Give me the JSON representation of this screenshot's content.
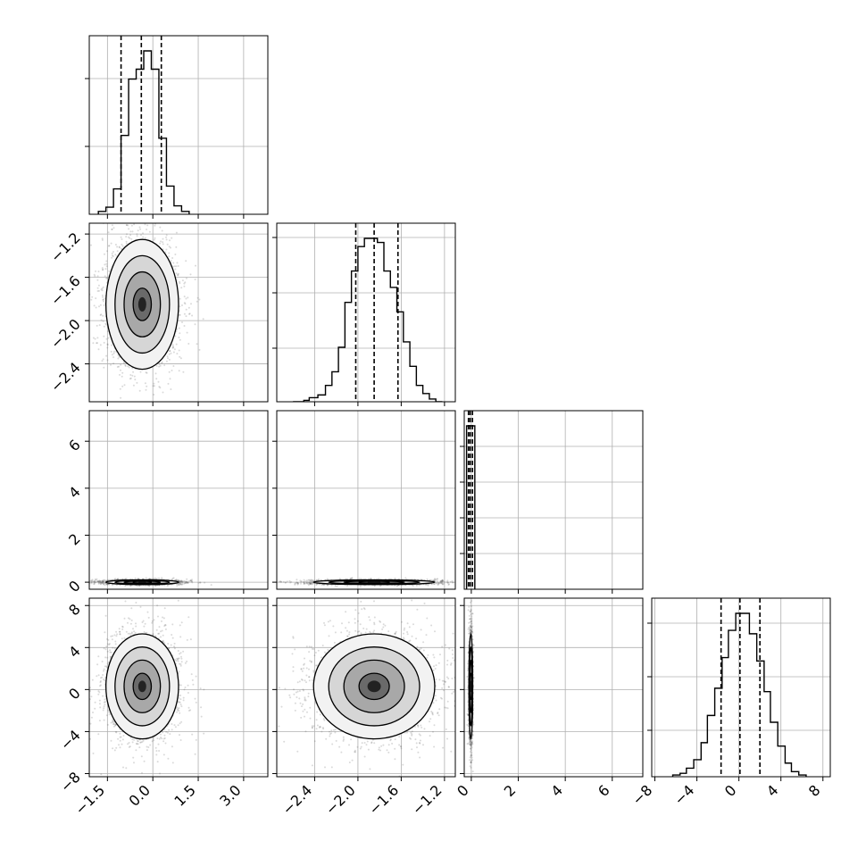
{
  "chart_data": {
    "type": "corner",
    "parameters": [
      {
        "range": [
          -2.1,
          3.8
        ],
        "ticks": [
          -1.5,
          0.0,
          1.5,
          3.0
        ],
        "tick_labels": [
          "−1.5",
          "0.0",
          "1.5",
          "3.0"
        ],
        "hist_rel_ticks": [
          0.38,
          0.76
        ],
        "median": -0.38,
        "q_low": -1.05,
        "q_high": 0.28,
        "hist": {
          "edges": [
            -1.8,
            -1.55,
            -1.3,
            -1.05,
            -0.8,
            -0.55,
            -0.3,
            -0.05,
            0.2,
            0.45,
            0.7,
            0.95,
            1.2
          ],
          "counts": [
            2,
            5,
            18,
            56,
            96,
            103,
            116,
            103,
            54,
            20,
            6,
            2
          ]
        }
      },
      {
        "range": [
          -2.75,
          -1.1
        ],
        "ticks": [
          -2.4,
          -2.0,
          -1.6,
          -1.2
        ],
        "tick_labels": [
          "−2.4",
          "−2.0",
          "−1.6",
          "−1.2"
        ],
        "hist_rel_ticks": [
          0.3,
          0.61,
          0.92
        ],
        "median": -1.85,
        "q_low": -2.02,
        "q_high": -1.63,
        "hist": {
          "edges": [
            -2.6,
            -2.5,
            -2.45,
            -2.37,
            -2.3,
            -2.24,
            -2.18,
            -2.12,
            -2.06,
            -2.0,
            -1.94,
            -1.88,
            -1.82,
            -1.76,
            -1.7,
            -1.64,
            -1.58,
            -1.52,
            -1.46,
            -1.4,
            -1.34,
            -1.28,
            -1.22
          ],
          "counts": [
            0,
            1,
            3,
            5,
            12,
            22,
            40,
            73,
            96,
            114,
            120,
            120,
            117,
            96,
            84,
            66,
            44,
            26,
            12,
            6,
            2,
            0
          ]
        }
      },
      {
        "range": [
          -0.3,
          7.3
        ],
        "ticks": [
          0,
          2,
          4,
          6
        ],
        "tick_labels": [
          "0",
          "2",
          "4",
          "6"
        ],
        "hist_rel_ticks": [
          0.2,
          0.4,
          0.6,
          0.8
        ],
        "median": -0.05,
        "q_low": -0.12,
        "q_high": 0.05,
        "hist": {
          "edges": [
            -0.2,
            0.15
          ],
          "counts": [
            100
          ]
        }
      },
      {
        "range": [
          -8.3,
          8.7
        ],
        "ticks": [
          -8,
          -4,
          0,
          4,
          8
        ],
        "tick_labels": [
          "−8",
          "−4",
          "0",
          "4",
          "8"
        ],
        "hist_rel_ticks": [
          0.26,
          0.56,
          0.86
        ],
        "median": 0.1,
        "q_low": -1.7,
        "q_high": 2.0,
        "hist": {
          "edges": [
            -6.3,
            -5.6,
            -5.0,
            -4.3,
            -3.6,
            -3.0,
            -2.3,
            -1.6,
            -1.0,
            -0.3,
            0.4,
            1.0,
            1.7,
            2.4,
            3.0,
            3.7,
            4.4,
            5.0,
            5.7,
            6.4
          ],
          "counts": [
            1,
            2,
            5,
            10,
            20,
            36,
            52,
            70,
            86,
            96,
            96,
            84,
            68,
            50,
            32,
            18,
            8,
            3,
            1
          ]
        }
      }
    ],
    "pairs": [
      {
        "row": 1,
        "col": 0,
        "cx": -0.35,
        "cy": -1.85,
        "sx": 0.6,
        "sy": 0.3,
        "rho": 0.0
      },
      {
        "row": 2,
        "col": 0,
        "cx": -0.35,
        "cy": 0.0,
        "sx": 0.6,
        "sy": 0.05,
        "rho": 0.0
      },
      {
        "row": 2,
        "col": 1,
        "cx": -1.85,
        "cy": 0.0,
        "sx": 0.28,
        "sy": 0.05,
        "rho": 0.0
      },
      {
        "row": 3,
        "col": 0,
        "cx": -0.35,
        "cy": 0.3,
        "sx": 0.6,
        "sy": 2.5,
        "rho": 0.0
      },
      {
        "row": 3,
        "col": 1,
        "cx": -1.85,
        "cy": 0.3,
        "sx": 0.28,
        "sy": 2.5,
        "rho": 0.0
      },
      {
        "row": 3,
        "col": 2,
        "cx": -0.02,
        "cy": 0.3,
        "sx": 0.04,
        "sy": 2.5,
        "rho": 0.0
      }
    ],
    "contour_levels_sigma": [
      0.5,
      1.0,
      1.5,
      2.0
    ],
    "grid": true,
    "colors": {
      "points": "#555555",
      "density_dark": "#222222",
      "lines": "#000000",
      "grid": "#b0b0b0"
    }
  }
}
